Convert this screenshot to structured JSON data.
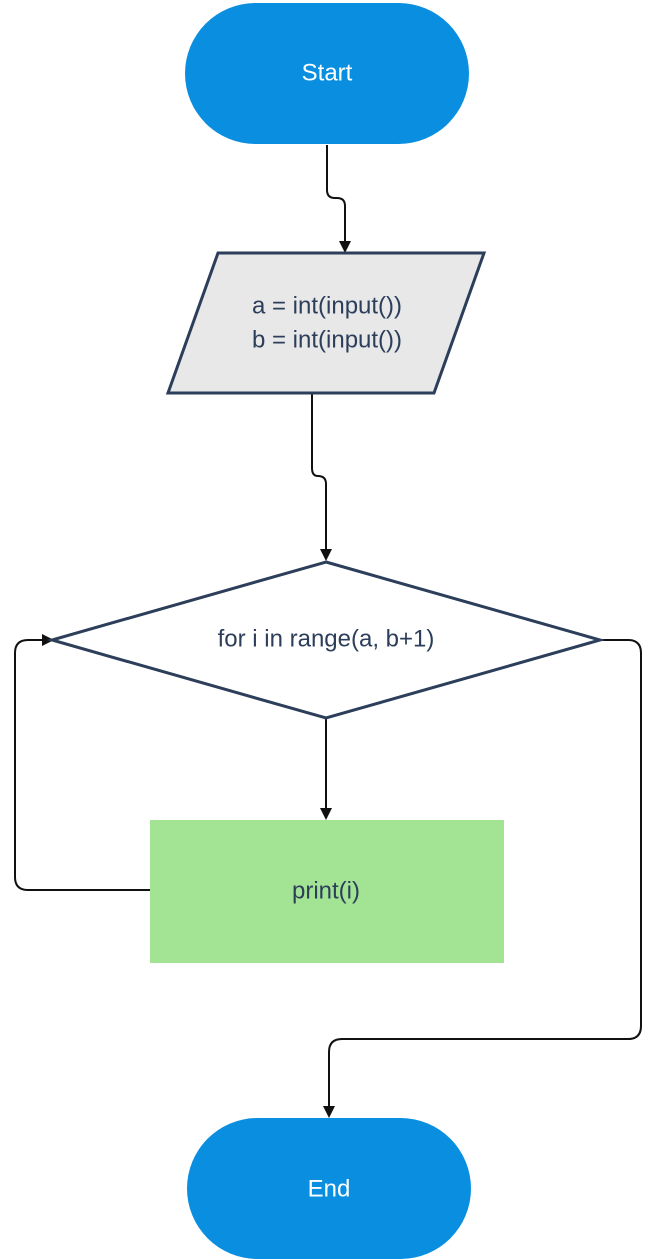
{
  "diagram": {
    "type": "flowchart",
    "nodes": {
      "start": {
        "label": "Start",
        "shape": "terminal",
        "fill": "#0a8fe0"
      },
      "input": {
        "lines": [
          "a = int(input())",
          "b = int(input())"
        ],
        "shape": "parallelogram",
        "fill": "#e8e8e8",
        "stroke": "#2c3e5a"
      },
      "loop": {
        "label": "for i in range(a, b+1)",
        "shape": "decision",
        "fill": "#ffffff",
        "stroke": "#2c3e5a"
      },
      "body": {
        "label": "print(i)",
        "shape": "process",
        "fill": "#a3e494"
      },
      "end": {
        "label": "End",
        "shape": "terminal",
        "fill": "#0a8fe0"
      }
    },
    "edges": [
      {
        "from": "start",
        "to": "input"
      },
      {
        "from": "input",
        "to": "loop"
      },
      {
        "from": "loop",
        "to": "body"
      },
      {
        "from": "body",
        "to": "loop"
      },
      {
        "from": "loop",
        "to": "end"
      }
    ]
  }
}
